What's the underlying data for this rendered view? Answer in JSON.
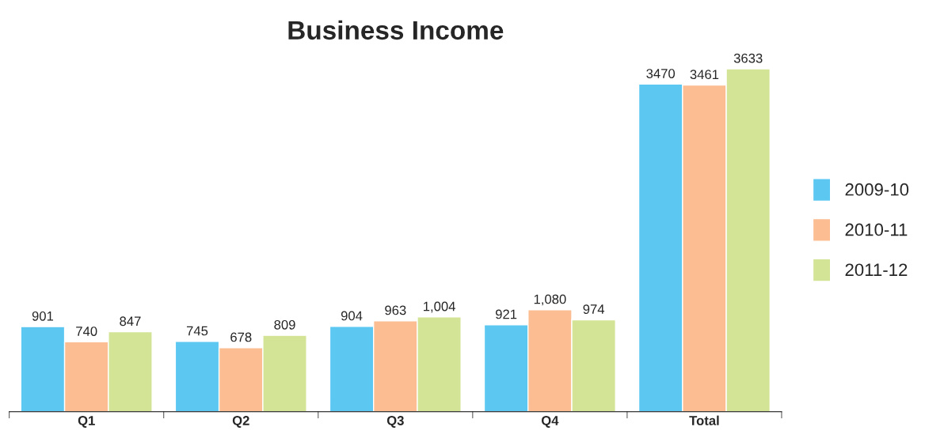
{
  "chart_data": {
    "type": "bar",
    "title": "Business Income",
    "categories": [
      "Q1",
      "Q2",
      "Q3",
      "Q4",
      "Total"
    ],
    "series": [
      {
        "name": "2009-10",
        "color": "#5cc8f2",
        "values": [
          901,
          745,
          904,
          921,
          3470
        ],
        "value_labels": [
          "901",
          "745",
          "904",
          "921",
          "3470"
        ]
      },
      {
        "name": "2010-11",
        "color": "#fbbd91",
        "values": [
          740,
          678,
          963,
          1080,
          3461
        ],
        "value_labels": [
          "740",
          "678",
          "963",
          "1,080",
          "3461"
        ]
      },
      {
        "name": "2011-12",
        "color": "#d3e496",
        "values": [
          847,
          809,
          1004,
          974,
          3633
        ],
        "value_labels": [
          "847",
          "809",
          "1,004",
          "974",
          "3633"
        ]
      }
    ],
    "legend": "right",
    "grid": false,
    "tick_labels": "x"
  }
}
